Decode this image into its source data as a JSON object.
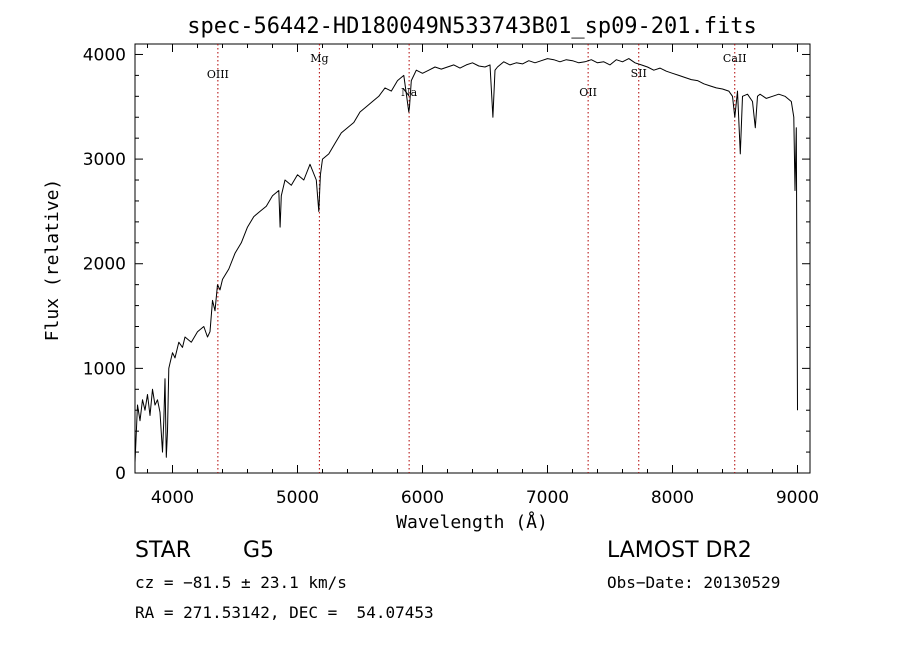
{
  "chart_data": {
    "type": "line",
    "title": "spec-56442-HD180049N533743B01_sp09-201.fits",
    "xlabel": "Wavelength (Å)",
    "ylabel": "Flux (relative)",
    "xlim": [
      3700,
      9100
    ],
    "ylim": [
      0,
      4100
    ],
    "x_ticks": [
      4000,
      5000,
      6000,
      7000,
      8000,
      9000
    ],
    "y_ticks": [
      0,
      1000,
      2000,
      3000,
      4000
    ],
    "grid": false,
    "line_color": "#000000",
    "marker_color": "#b00000",
    "series": [
      {
        "x": [
          3700,
          3720,
          3740,
          3760,
          3780,
          3800,
          3820,
          3840,
          3860,
          3880,
          3900,
          3920,
          3930,
          3940,
          3950,
          3960,
          3970,
          3980,
          4000,
          4020,
          4050,
          4080,
          4100,
          4150,
          4200,
          4250,
          4280,
          4300,
          4320,
          4340,
          4360,
          4380,
          4400,
          4450,
          4500,
          4550,
          4600,
          4650,
          4700,
          4750,
          4800,
          4850,
          4861,
          4870,
          4900,
          4950,
          5000,
          5050,
          5100,
          5150,
          5170,
          5183,
          5200,
          5250,
          5300,
          5350,
          5400,
          5450,
          5500,
          5550,
          5600,
          5650,
          5700,
          5750,
          5800,
          5850,
          5890,
          5896,
          5910,
          5950,
          6000,
          6050,
          6100,
          6150,
          6200,
          6250,
          6300,
          6350,
          6400,
          6450,
          6500,
          6540,
          6563,
          6580,
          6600,
          6650,
          6700,
          6750,
          6800,
          6850,
          6900,
          6950,
          7000,
          7050,
          7100,
          7150,
          7200,
          7250,
          7300,
          7350,
          7400,
          7450,
          7500,
          7550,
          7600,
          7650,
          7700,
          7750,
          7800,
          7850,
          7900,
          7950,
          8000,
          8050,
          8100,
          8150,
          8200,
          8250,
          8300,
          8350,
          8400,
          8450,
          8480,
          8498,
          8520,
          8542,
          8560,
          8600,
          8640,
          8662,
          8680,
          8700,
          8750,
          8800,
          8850,
          8900,
          8950,
          8970,
          8980,
          8990,
          9000
        ],
        "y": [
          100,
          650,
          500,
          700,
          600,
          750,
          550,
          800,
          650,
          700,
          580,
          200,
          500,
          900,
          150,
          400,
          1000,
          1050,
          1150,
          1100,
          1250,
          1200,
          1300,
          1250,
          1350,
          1400,
          1300,
          1350,
          1650,
          1550,
          1800,
          1750,
          1850,
          1950,
          2100,
          2200,
          2350,
          2450,
          2500,
          2550,
          2650,
          2700,
          2350,
          2650,
          2800,
          2750,
          2850,
          2800,
          2950,
          2800,
          2500,
          2850,
          3000,
          3050,
          3150,
          3250,
          3300,
          3350,
          3450,
          3500,
          3550,
          3600,
          3680,
          3650,
          3750,
          3800,
          3450,
          3500,
          3750,
          3850,
          3820,
          3850,
          3880,
          3860,
          3880,
          3900,
          3870,
          3900,
          3920,
          3890,
          3880,
          3900,
          3400,
          3850,
          3880,
          3930,
          3900,
          3920,
          3910,
          3940,
          3920,
          3940,
          3960,
          3950,
          3930,
          3950,
          3940,
          3920,
          3930,
          3950,
          3920,
          3930,
          3900,
          3950,
          3930,
          3960,
          3920,
          3900,
          3880,
          3850,
          3870,
          3840,
          3820,
          3800,
          3780,
          3760,
          3750,
          3720,
          3700,
          3680,
          3670,
          3650,
          3600,
          3400,
          3650,
          3050,
          3600,
          3620,
          3550,
          3300,
          3600,
          3620,
          3580,
          3600,
          3620,
          3600,
          3550,
          3400,
          2700,
          3300,
          600
        ]
      }
    ],
    "line_markers": [
      {
        "label": "OIII",
        "x": 4363
      },
      {
        "label": "Mg",
        "x": 5175
      },
      {
        "label": "Na",
        "x": 5893
      },
      {
        "label": "OII",
        "x": 7325
      },
      {
        "label": "SII",
        "x": 7730
      },
      {
        "label": "CaII",
        "x": 8498
      }
    ]
  },
  "info": {
    "obj_class": "STAR",
    "subclass": "G5",
    "survey": "LAMOST DR2",
    "cz": "cz = −81.5 ± 23.1 km/s",
    "obs_date": "Obs−Date: 20130529",
    "radec": "RA = 271.53142, DEC =  54.07453"
  }
}
